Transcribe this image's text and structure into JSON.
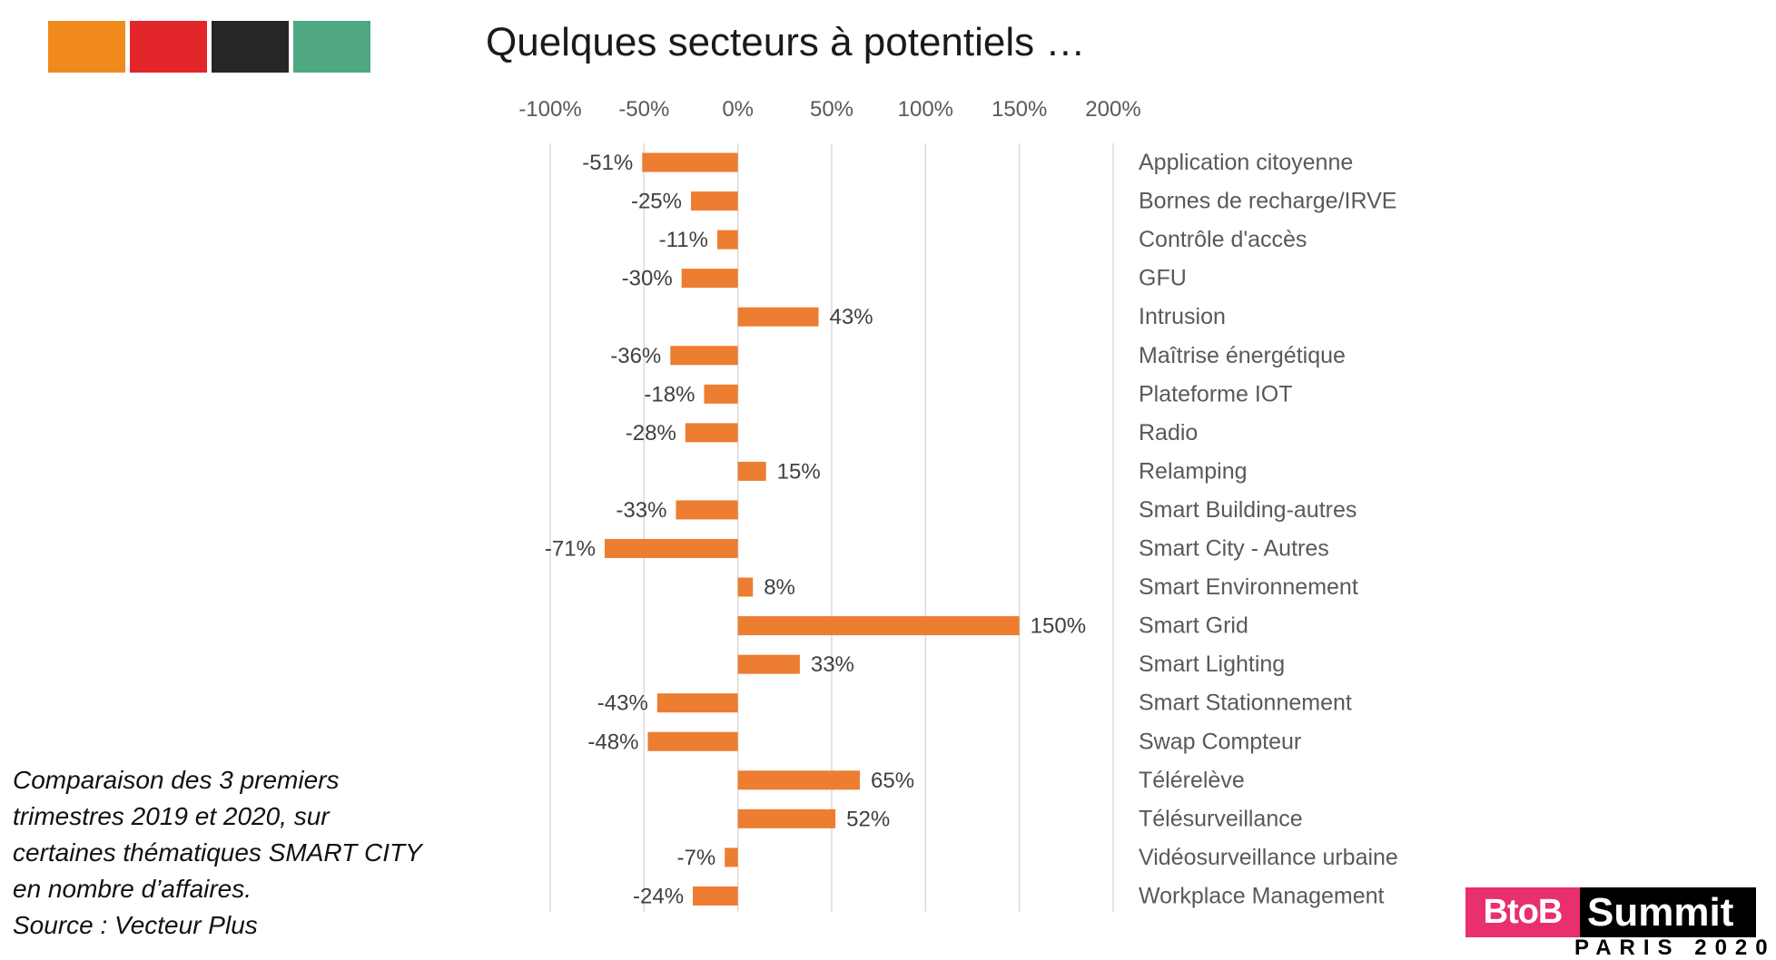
{
  "palette": [
    {
      "name": "orange",
      "color": "#f08a1c"
    },
    {
      "name": "red",
      "color": "#e3262a"
    },
    {
      "name": "dark",
      "color": "#262626"
    },
    {
      "name": "green",
      "color": "#4fa882"
    }
  ],
  "slide": {
    "title": "Quelques secteurs à potentiels …",
    "caption": "Comparaison des 3 premiers\ntrimestres 2019 et 2020, sur\ncertaines thématiques SMART CITY\nen nombre d’affaires.\nSource : Vecteur Plus"
  },
  "logo": {
    "part1": "BtoB",
    "part2": "Summit",
    "sub": "PARIS 2020",
    "accent": "#e8306c"
  },
  "chart_data": {
    "type": "bar",
    "orientation": "horizontal",
    "bar_color": "#ed7d31",
    "xlim": [
      -1.0,
      2.0
    ],
    "ticks": [
      -1.0,
      -0.5,
      0,
      0.5,
      1.0,
      1.5,
      2.0
    ],
    "tick_labels": [
      "-100%",
      "-50%",
      "0%",
      "50%",
      "100%",
      "150%",
      "200%"
    ],
    "axis_position": "top",
    "grid": true,
    "categories": [
      "Application citoyenne",
      "Bornes de recharge/IRVE",
      "Contrôle d'accès",
      "GFU",
      "Intrusion",
      "Maîtrise énergétique",
      "Plateforme IOT",
      "Radio",
      "Relamping",
      "Smart Building-autres",
      "Smart City - Autres",
      "Smart Environnement",
      "Smart Grid",
      "Smart Lighting",
      "Smart Stationnement",
      "Swap Compteur",
      "Télérelève",
      "Télésurveillance",
      "Vidéosurveillance urbaine",
      "Workplace Management"
    ],
    "values": [
      -0.51,
      -0.25,
      -0.11,
      -0.3,
      0.43,
      -0.36,
      -0.18,
      -0.28,
      0.15,
      -0.33,
      -0.71,
      0.08,
      1.5,
      0.33,
      -0.43,
      -0.48,
      0.65,
      0.52,
      -0.07,
      -0.24
    ],
    "data_labels": [
      "-51%",
      "-25%",
      "-11%",
      "-30%",
      "43%",
      "-36%",
      "-18%",
      "-28%",
      "15%",
      "-33%",
      "-71%",
      "8%",
      "150%",
      "33%",
      "-43%",
      "-48%",
      "65%",
      "52%",
      "-7%",
      "-24%"
    ]
  }
}
